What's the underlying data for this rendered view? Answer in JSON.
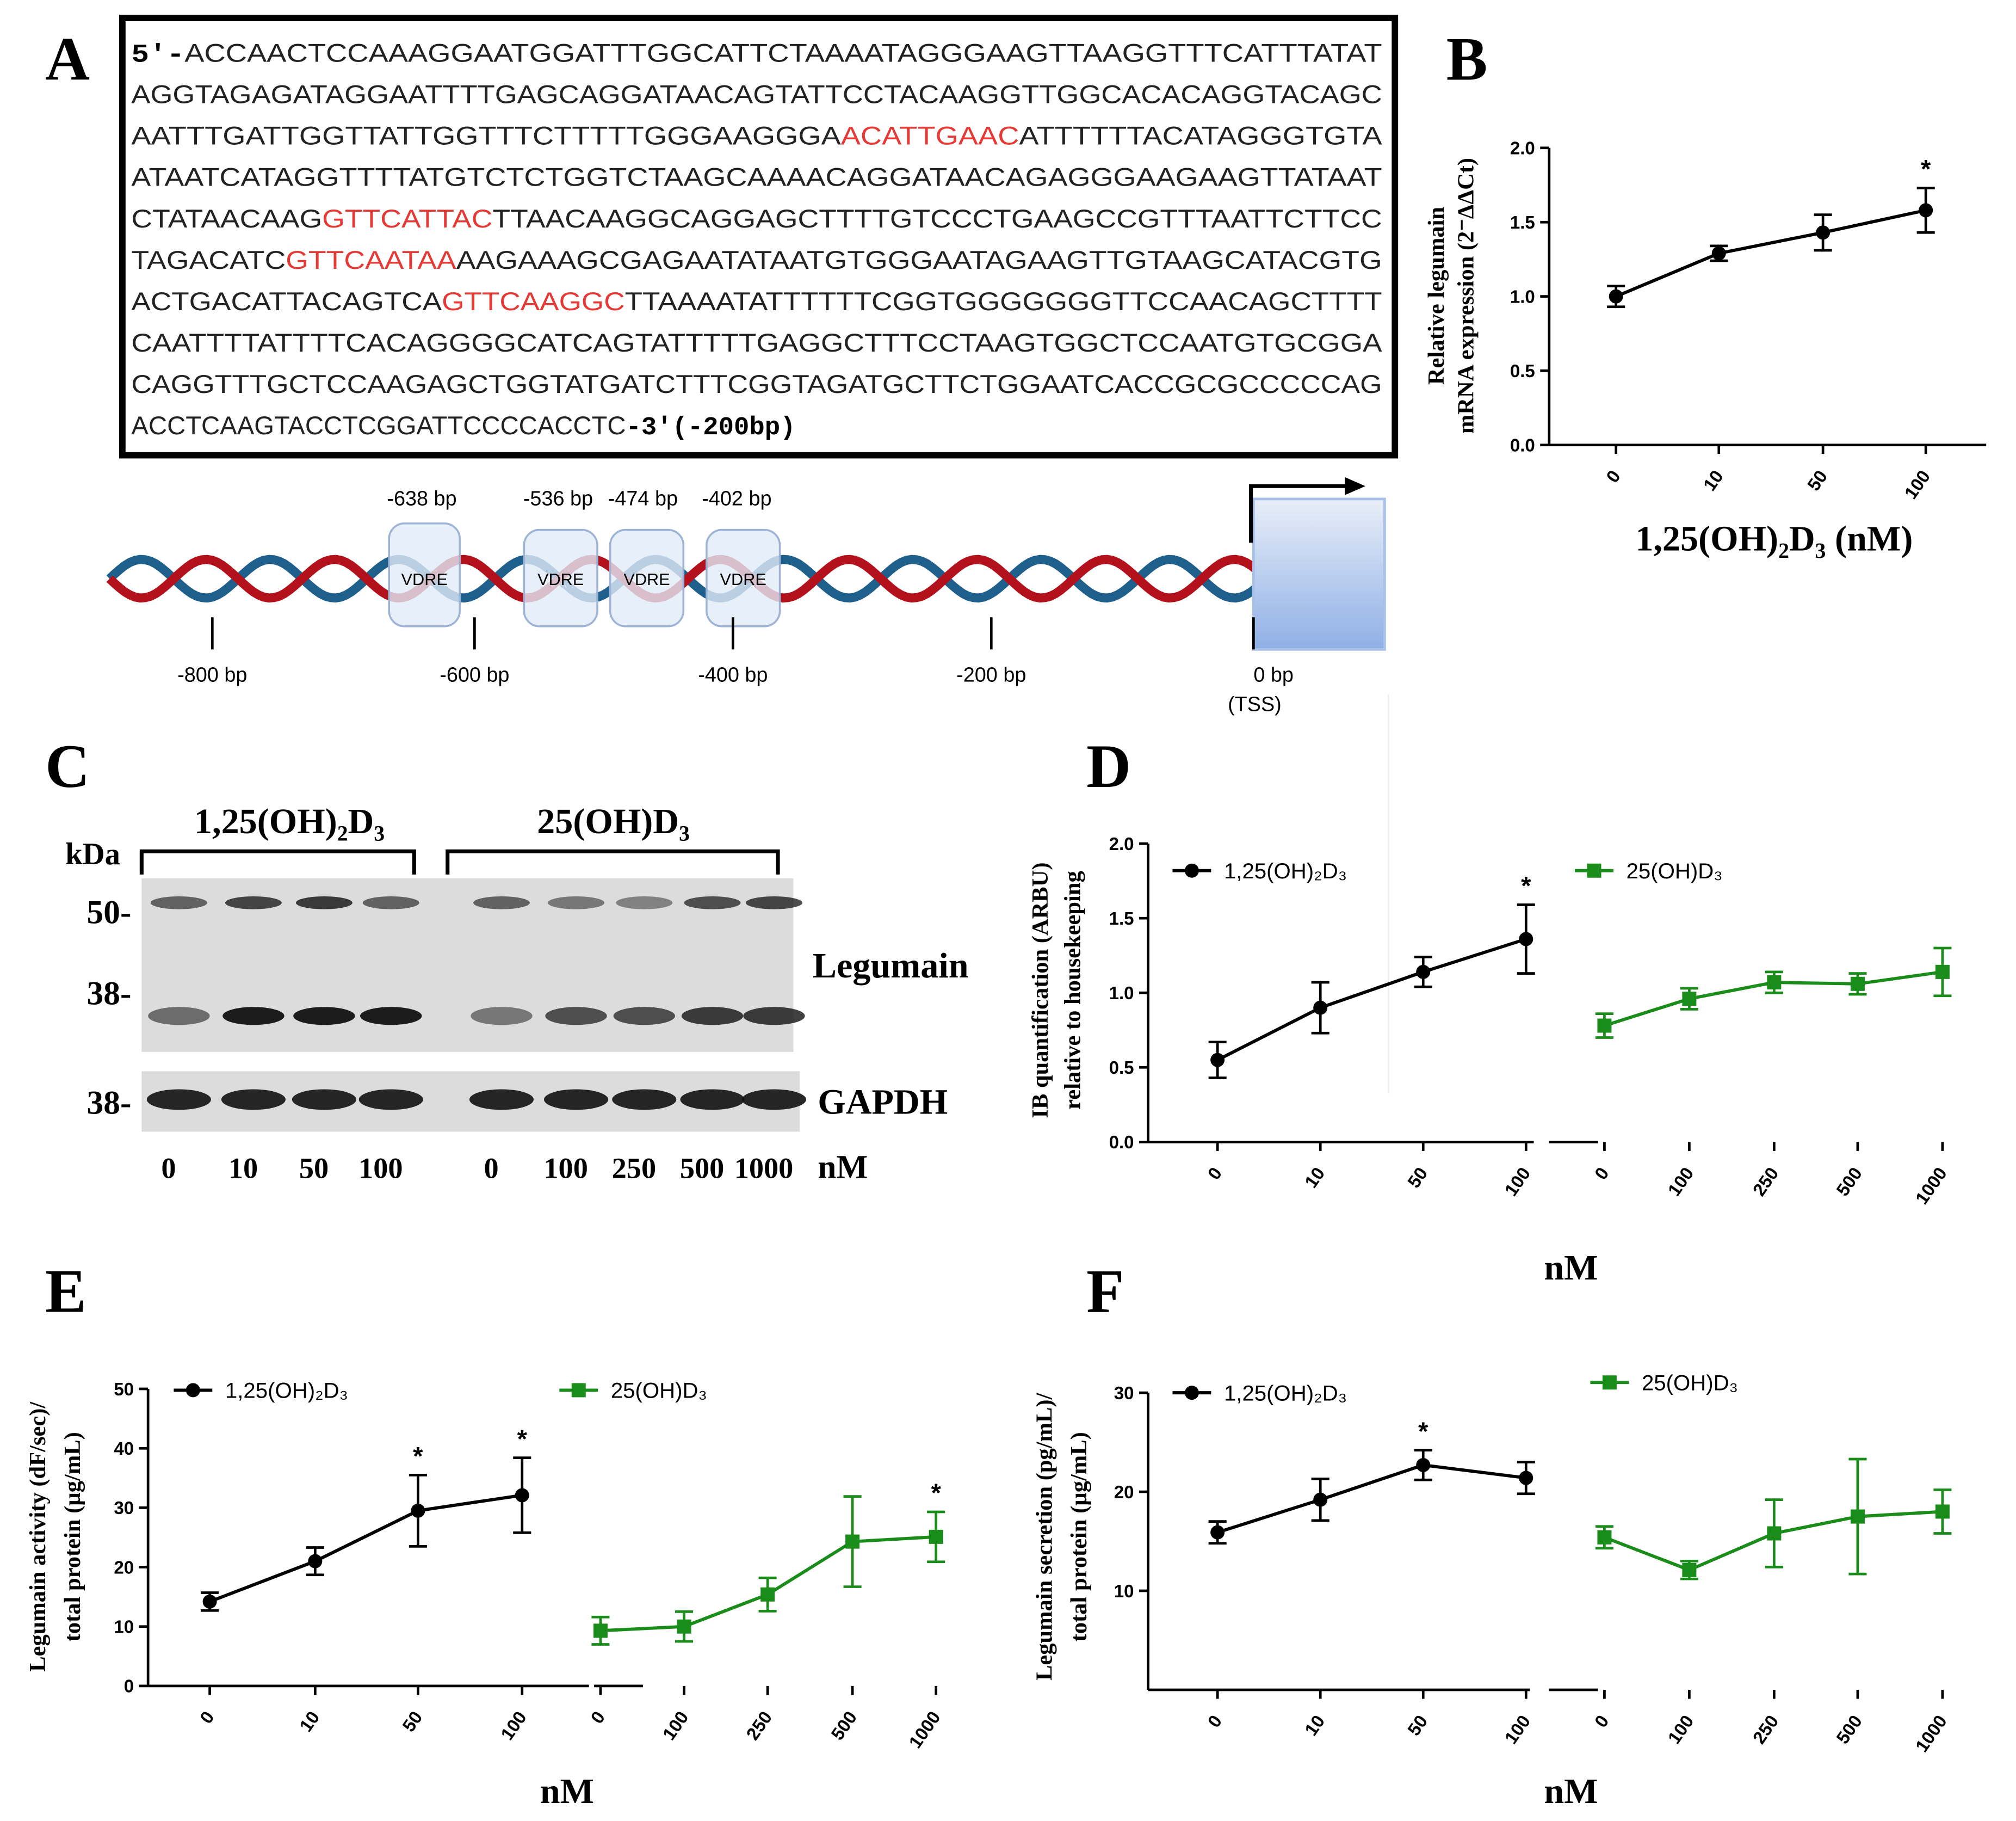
{
  "panel_labels": [
    "A",
    "B",
    "C",
    "D",
    "E",
    "F"
  ],
  "sequence": {
    "lines": [
      [
        {
          "text": "5′-",
          "style": "bold"
        },
        {
          "text": "ACCAACTCCAAAGGAATGGATTTGGCATTCTAAAATAGGGAAGTTAAGGTTTCATTTATAT",
          "style": "plain"
        }
      ],
      [
        {
          "text": "AGGTAGAGATAGGAATTTTGAGCAGGATAACAGTATTCCTACAAGGTTGGCACACAGGTACAGC",
          "style": "plain"
        }
      ],
      [
        {
          "text": "AATTTGATTGGTTATTGGTTTCTTTTTGGGAAGGGA",
          "style": "plain"
        },
        {
          "text": "ACATTGAAC",
          "style": "highlight"
        },
        {
          "text": "ATTTTTTACATAGGGTGTA",
          "style": "plain"
        }
      ],
      [
        {
          "text": "ATAATCATAGGTTTTATGTCTCTGGTCTAAGCAAAACAGGATAACAGAGGGAAGAAGTTATAAT",
          "style": "plain"
        }
      ],
      [
        {
          "text": "CTATAACAAG",
          "style": "plain"
        },
        {
          "text": "GTTCATTAC",
          "style": "highlight"
        },
        {
          "text": "TTAACAAGGCAGGAGCTTTTGTCCCTGAAGCCGTTTAATTCTTCC",
          "style": "plain"
        }
      ],
      [
        {
          "text": "TAGACATC",
          "style": "plain"
        },
        {
          "text": "GTTCAATAA",
          "style": "highlight"
        },
        {
          "text": "AAGAAAGCGAGAATATAATGTGGGAATAGAAGTTGTAAGCATACGTG",
          "style": "plain"
        }
      ],
      [
        {
          "text": "ACTGACATTACAGTCA",
          "style": "plain"
        },
        {
          "text": "GTTCAAGGC",
          "style": "highlight"
        },
        {
          "text": "TTAAAATATTTTTTCGGTGGGGGGGTTCCAACAGCTTTT",
          "style": "plain"
        }
      ],
      [
        {
          "text": "CAATTTTATTTTCACAGGGGCATCAGTATTTTTGAGGCTTTCCTAAGTGGCTCCAATGTGCGGA",
          "style": "plain"
        }
      ],
      [
        {
          "text": "CAGGTTTGCTCCAAGAGCTGGTATGATCTTTCGGTAGATGCTTCTGGAATCACCGCGCCCCCAG",
          "style": "plain"
        }
      ],
      [
        {
          "text": "ACCTCAAGTACCTCGGATTCCCCACCTC",
          "style": "plain"
        },
        {
          "text": "-3′(-200bp)",
          "style": "bold"
        }
      ]
    ]
  },
  "promoter": {
    "sites": [
      {
        "label": "-638 bp",
        "element": "VDRE"
      },
      {
        "label": "-536 bp",
        "element": "VDRE"
      },
      {
        "label": "-474 bp",
        "element": "VDRE"
      },
      {
        "label": "-402 bp",
        "element": "VDRE"
      }
    ],
    "scale": [
      "-800 bp",
      "-600 bp",
      "-400 bp",
      "-200 bp",
      "0 bp"
    ],
    "tss": "(TSS)"
  },
  "blot": {
    "groups": [
      "1,25(OH)₂D₃",
      "25(OH)D₃"
    ],
    "unit_label": "kDa",
    "markers": [
      "50-",
      "38-",
      "38-"
    ],
    "proteins": [
      "Legumain",
      "GAPDH"
    ],
    "lanes": [
      "0",
      "10",
      "50",
      "100",
      "0",
      "100",
      "250",
      "500",
      "1000"
    ],
    "lane_unit": "nM"
  },
  "chart_data": [
    {
      "type": "line",
      "ylabel": [
        "Relative legumain",
        "mRNA expression (2⁻ΔΔCt)"
      ],
      "xlabel": "1,25(OH)₂D₃ (nM)",
      "categories": [
        "0",
        "10",
        "50",
        "100"
      ],
      "series": [
        {
          "color": "#000000",
          "marker": "circle",
          "values": [
            1.0,
            1.29,
            1.43,
            1.58
          ],
          "errors": [
            0.07,
            0.05,
            0.12,
            0.15
          ],
          "significance": [
            null,
            null,
            null,
            "*"
          ]
        }
      ],
      "ylim": [
        0,
        2
      ],
      "yticks": [
        {
          "value": 0,
          "label": "0.0"
        },
        {
          "value": 0.5,
          "label": "0.5"
        },
        {
          "value": 1,
          "label": "1.0"
        },
        {
          "value": 1.5,
          "label": "1.5"
        },
        {
          "value": 2,
          "label": "2.0"
        }
      ]
    },
    {
      "type": "line",
      "ylabel": [
        "IB quantification (ARBU)",
        "relative to housekeeping"
      ],
      "xlabel": "nM",
      "categories": [
        "0",
        "10",
        "50",
        "100",
        "0",
        "100",
        "250",
        "500",
        "1000"
      ],
      "series": [
        {
          "name": "1,25(OH)₂D₃",
          "color": "#000000",
          "marker": "circle",
          "values": [
            0.55,
            0.9,
            1.14,
            1.36,
            null,
            null,
            null,
            null,
            null
          ],
          "errors": [
            0.12,
            0.17,
            0.1,
            0.23,
            null,
            null,
            null,
            null,
            null
          ],
          "significance": [
            null,
            null,
            null,
            "*",
            null,
            null,
            null,
            null,
            null
          ]
        },
        {
          "name": "25(OH)D₃",
          "color": "#1a8c1a",
          "marker": "square",
          "values": [
            null,
            null,
            null,
            null,
            0.78,
            0.96,
            1.07,
            1.06,
            1.14
          ],
          "errors": [
            null,
            null,
            null,
            null,
            0.08,
            0.07,
            0.07,
            0.07,
            0.16
          ],
          "significance": [
            null,
            null,
            null,
            null,
            null,
            null,
            null,
            null,
            null
          ]
        }
      ],
      "ylim": [
        0,
        2
      ],
      "yticks": [
        {
          "value": 0,
          "label": "0.0"
        },
        {
          "value": 0.5,
          "label": "0.5"
        },
        {
          "value": 1,
          "label": "1.0"
        },
        {
          "value": 1.5,
          "label": "1.5"
        },
        {
          "value": 2,
          "label": "2.0"
        }
      ]
    },
    {
      "type": "line",
      "ylabel": [
        "Legumain activity (dF/sec)/",
        "total protein (µg/mL)"
      ],
      "xlabel": "nM",
      "categories": [
        "0",
        "10",
        "50",
        "100",
        "0",
        "100",
        "250",
        "500",
        "1000"
      ],
      "series": [
        {
          "name": "1,25(OH)₂D₃",
          "color": "#000000",
          "marker": "circle",
          "values": [
            14.2,
            21,
            29.5,
            32.1,
            null,
            null,
            null,
            null,
            null
          ],
          "errors": [
            1.5,
            2.3,
            6,
            6.3,
            null,
            null,
            null,
            null,
            null
          ],
          "significance": [
            null,
            null,
            "*",
            "*",
            null,
            null,
            null,
            null,
            null
          ]
        },
        {
          "name": "25(OH)D₃",
          "color": "#1a8c1a",
          "marker": "square",
          "values": [
            null,
            null,
            null,
            null,
            9.3,
            10,
            15.4,
            24.3,
            25.1
          ],
          "errors": [
            null,
            null,
            null,
            null,
            2.3,
            2.5,
            2.8,
            7.6,
            4.2
          ],
          "significance": [
            null,
            null,
            null,
            null,
            null,
            null,
            null,
            null,
            "*"
          ]
        }
      ],
      "ylim": [
        0,
        50
      ],
      "yticks": [
        0,
        10,
        20,
        30,
        40,
        50
      ]
    },
    {
      "type": "line",
      "ylabel": [
        "Legumain secretion (pg/mL)/",
        "total protein (µg/mL)"
      ],
      "xlabel": "nM",
      "categories": [
        "0",
        "10",
        "50",
        "100",
        "0",
        "100",
        "250",
        "500",
        "1000"
      ],
      "series": [
        {
          "name": "1,25(OH)₂D₃",
          "color": "#000000",
          "marker": "circle",
          "values": [
            15.9,
            19.2,
            22.7,
            21.4,
            null,
            null,
            null,
            null,
            null
          ],
          "errors": [
            1.1,
            2.1,
            1.5,
            1.6,
            null,
            null,
            null,
            null,
            null
          ],
          "significance": [
            null,
            null,
            "*",
            null,
            null,
            null,
            null,
            null,
            null
          ]
        },
        {
          "name": "25(OH)D₃",
          "color": "#1a8c1a",
          "marker": "square",
          "values": [
            null,
            null,
            null,
            null,
            15.4,
            12.1,
            15.8,
            17.5,
            18
          ],
          "errors": [
            null,
            null,
            null,
            null,
            1.1,
            0.9,
            3.4,
            5.8,
            2.2
          ],
          "significance": [
            null,
            null,
            null,
            null,
            null,
            null,
            null,
            null,
            null
          ]
        }
      ],
      "ylim": [
        0,
        30
      ],
      "yticks": [
        10,
        20,
        30
      ]
    }
  ]
}
